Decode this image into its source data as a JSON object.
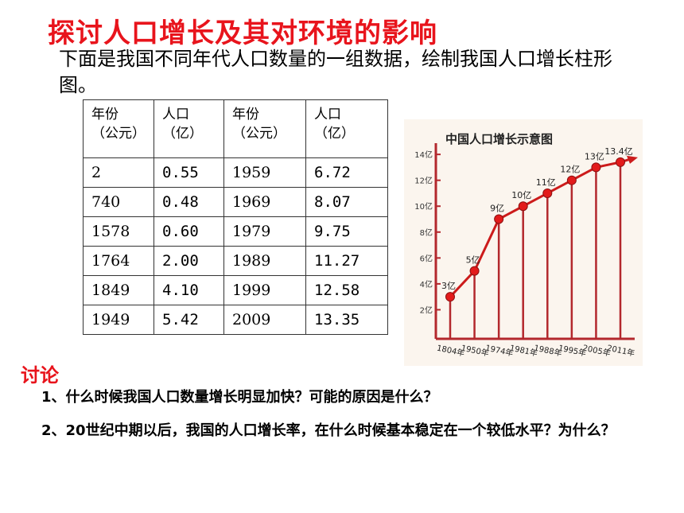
{
  "title": "探讨人口增长及其对环境的影响",
  "intro": "下面是我国不同年代人口数量的一组数据，绘制我国人口增长柱形图。",
  "table": {
    "headers": [
      {
        "line1": "年份",
        "line2": "（公元）"
      },
      {
        "line1": "人口",
        "line2": "（亿）"
      },
      {
        "line1": "年份",
        "line2": "（公元）"
      },
      {
        "line1": "人口",
        "line2": "（亿）"
      }
    ],
    "rows": [
      [
        "2",
        "0.55",
        "1959",
        "6.72"
      ],
      [
        "740",
        "0.48",
        "1969",
        "8.07"
      ],
      [
        "1578",
        "0.60",
        "1979",
        "9.75"
      ],
      [
        "1764",
        "2.00",
        "1989",
        "11.27"
      ],
      [
        "1849",
        "4.10",
        "1999",
        "12.58"
      ],
      [
        "1949",
        "5.42",
        "2009",
        "13.35"
      ]
    ]
  },
  "chart_data": {
    "type": "line",
    "title": "中国人口增长示意图",
    "categories": [
      "1804年",
      "1950年",
      "1974年",
      "1981年",
      "1988年",
      "1995年",
      "2005年",
      "2011年"
    ],
    "values": [
      3,
      5,
      9,
      10,
      11,
      12,
      13,
      13.4
    ],
    "point_labels": [
      "3亿",
      "5亿",
      "9亿",
      "10亿",
      "11亿",
      "12亿",
      "13亿",
      "13.4亿"
    ],
    "y_ticks": [
      "2亿",
      "4亿",
      "6亿",
      "8亿",
      "10亿",
      "12亿",
      "14亿"
    ],
    "y_tick_values": [
      2,
      4,
      6,
      8,
      10,
      12,
      14
    ],
    "ylim": [
      0,
      14.5
    ],
    "colors": {
      "line": "#cc1b1b",
      "point": "#e31b1b",
      "stem": "#b3282d",
      "axis": "#b3282d"
    }
  },
  "discussion": {
    "heading": "讨论",
    "q1": "1、什么时候我国人口数量增长明显加快？可能的原因是什么？",
    "q2": "2、20世纪中期以后，我国的人口增长率，在什么时候基本稳定在一个较低水平？为什么？"
  }
}
